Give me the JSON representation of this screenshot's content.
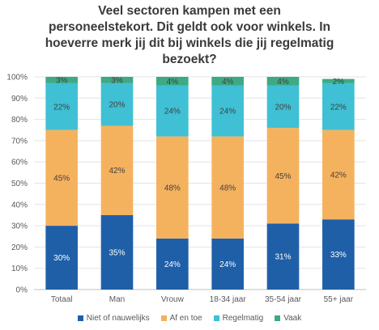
{
  "chart_data": {
    "type": "bar",
    "stacked": true,
    "title_lines": [
      "Veel sectoren kampen met een",
      "personeelstekort. Dit geldt ook voor winkels. In",
      "hoeverre merk jij dit bij winkels die jij regelmatig",
      "bezoekt?"
    ],
    "categories": [
      "Totaal",
      "Man",
      "Vrouw",
      "18-34 jaar",
      "35-54 jaar",
      "55+ jaar"
    ],
    "yticks": [
      "0%",
      "10%",
      "20%",
      "30%",
      "40%",
      "50%",
      "60%",
      "70%",
      "80%",
      "90%",
      "100%"
    ],
    "ylim": [
      0,
      100
    ],
    "grid": true,
    "legend_position": "bottom",
    "series": [
      {
        "name": "Niet of nauwelijks",
        "color": "#1f5fa8",
        "label_color": "#ffffff",
        "values": [
          30,
          35,
          24,
          24,
          31,
          33
        ],
        "labels": [
          "30%",
          "35%",
          "24%",
          "24%",
          "31%",
          "33%"
        ]
      },
      {
        "name": "Af en toe",
        "color": "#f5b25e",
        "label_color": "#404040",
        "values": [
          45,
          42,
          48,
          48,
          45,
          42
        ],
        "labels": [
          "45%",
          "42%",
          "48%",
          "48%",
          "45%",
          "42%"
        ]
      },
      {
        "name": "Regelmatig",
        "color": "#3fc0d4",
        "label_color": "#404040",
        "values": [
          22,
          20,
          24,
          24,
          20,
          22
        ],
        "labels": [
          "22%",
          "20%",
          "24%",
          "24%",
          "20%",
          "22%"
        ]
      },
      {
        "name": "Vaak",
        "color": "#3daa85",
        "label_color": "#404040",
        "values": [
          3,
          3,
          4,
          4,
          4,
          2
        ],
        "labels": [
          "3%",
          "3%",
          "4%",
          "4%",
          "4%",
          "2%"
        ]
      }
    ]
  }
}
